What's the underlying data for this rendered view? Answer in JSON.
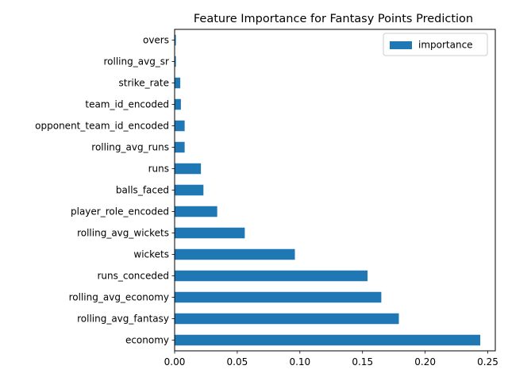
{
  "chart_data": {
    "type": "bar",
    "orientation": "horizontal",
    "title": "Feature Importance for Fantasy Points Prediction",
    "xlabel": "",
    "ylabel": "",
    "categories": [
      "economy",
      "rolling_avg_fantasy",
      "rolling_avg_economy",
      "runs_conceded",
      "wickets",
      "rolling_avg_wickets",
      "player_role_encoded",
      "balls_faced",
      "runs",
      "rolling_avg_runs",
      "opponent_team_id_encoded",
      "team_id_encoded",
      "strike_rate",
      "rolling_avg_sr",
      "overs"
    ],
    "series": [
      {
        "name": "importance",
        "values": [
          0.244,
          0.179,
          0.165,
          0.154,
          0.096,
          0.056,
          0.034,
          0.023,
          0.021,
          0.008,
          0.008,
          0.005,
          0.0045,
          0.001,
          0.001
        ]
      }
    ],
    "xlim": [
      0,
      0.256
    ],
    "xticks": [
      0.0,
      0.05,
      0.1,
      0.15,
      0.2,
      0.25
    ],
    "xtick_labels": [
      "0.00",
      "0.05",
      "0.10",
      "0.15",
      "0.20",
      "0.25"
    ],
    "grid": false,
    "legend_position": "top-right",
    "bar_color": "#1f77b4"
  }
}
